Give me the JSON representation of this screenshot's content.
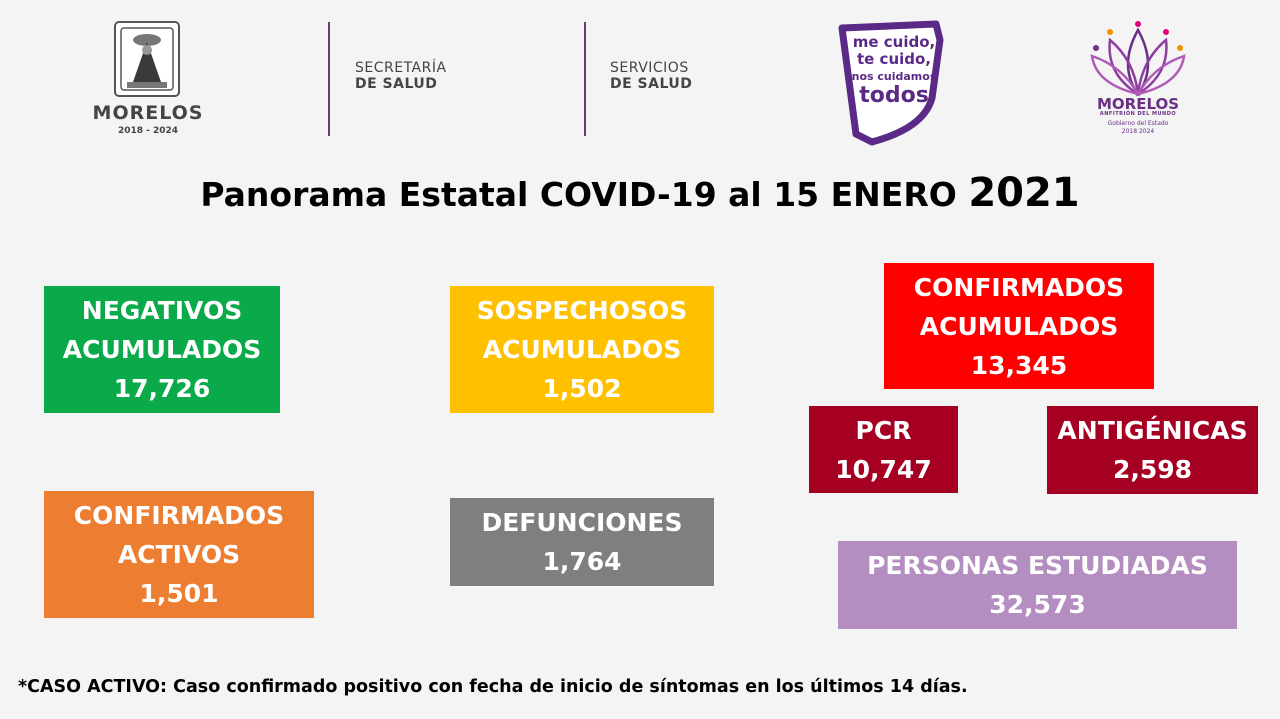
{
  "header": {
    "state_seal": {
      "name": "MORELOS",
      "years": "2018 - 2024"
    },
    "org1": {
      "line1": "SECRETARÍA",
      "line2": "DE SALUD"
    },
    "org2": {
      "line1": "SERVICIOS",
      "line2": "DE SALUD"
    },
    "campaign": {
      "line1": "me cuido,",
      "line2": "te cuido,",
      "line3": "nos cuidamos",
      "line4": "todos"
    },
    "government": {
      "name": "MORELOS",
      "tagline": "ANFITRIÓN DEL MUNDO",
      "sub1": "Gobierno del Estado",
      "sub2": "2018 2024"
    }
  },
  "title": {
    "main": "Panorama Estatal COVID-19 al 15 ENERO",
    "year": "2021"
  },
  "cards": {
    "negativos": {
      "line1": "NEGATIVOS",
      "line2": "ACUMULADOS",
      "value": "17,726",
      "color": "#0aaa4b"
    },
    "sospechosos": {
      "line1": "SOSPECHOSOS",
      "line2": "ACUMULADOS",
      "value": "1,502",
      "color": "#ffc000"
    },
    "confirmados_acumulados": {
      "line1": "CONFIRMADOS",
      "line2": "ACUMULADOS",
      "value": "13,345",
      "color": "#ff0000"
    },
    "pcr": {
      "line1": "PCR",
      "value": "10,747",
      "color": "#a50021"
    },
    "antigenicas": {
      "line1": "ANTIGÉNICAS",
      "value": "2,598",
      "color": "#a50021"
    },
    "confirmados_activos": {
      "line1": "CONFIRMADOS",
      "line2": "ACTIVOS",
      "value": "1,501",
      "color": "#ed7d31"
    },
    "defunciones": {
      "line1": "DEFUNCIONES",
      "value": "1,764",
      "color": "#7f7f7f"
    },
    "personas": {
      "line1": "PERSONAS ESTUDIADAS",
      "value": "32,573",
      "color": "#b48ec1"
    }
  },
  "footnote": "*CASO ACTIVO: Caso confirmado positivo con fecha de inicio de síntomas en los últimos 14 días.",
  "colors": {
    "accent_purple": "#6b2f86"
  }
}
